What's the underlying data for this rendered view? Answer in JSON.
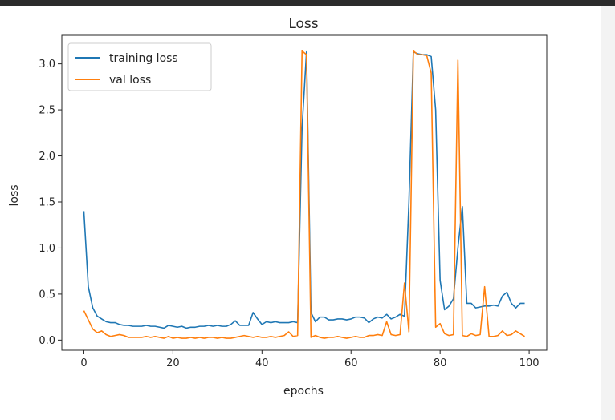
{
  "chart_data": {
    "type": "line",
    "title": "Loss",
    "xlabel": "epochs",
    "ylabel": "loss",
    "xlim": [
      -4.95,
      103.95
    ],
    "ylim": [
      -0.11,
      3.31
    ],
    "xticks": [
      "0",
      "20",
      "40",
      "60",
      "80",
      "100"
    ],
    "yticks": [
      "0.0",
      "0.5",
      "1.0",
      "1.5",
      "2.0",
      "2.5",
      "3.0"
    ],
    "grid": false,
    "legend_position": "top-left",
    "series": [
      {
        "name": "training loss",
        "color": "#1f77b4",
        "values": [
          1.4,
          0.58,
          0.35,
          0.26,
          0.23,
          0.2,
          0.19,
          0.19,
          0.17,
          0.16,
          0.16,
          0.15,
          0.15,
          0.15,
          0.16,
          0.15,
          0.15,
          0.14,
          0.13,
          0.16,
          0.15,
          0.14,
          0.15,
          0.13,
          0.14,
          0.14,
          0.15,
          0.15,
          0.16,
          0.15,
          0.16,
          0.15,
          0.15,
          0.17,
          0.21,
          0.16,
          0.16,
          0.16,
          0.3,
          0.23,
          0.17,
          0.2,
          0.19,
          0.2,
          0.19,
          0.19,
          0.19,
          0.2,
          0.19,
          2.3,
          3.13,
          0.3,
          0.2,
          0.25,
          0.25,
          0.22,
          0.22,
          0.23,
          0.23,
          0.22,
          0.23,
          0.25,
          0.25,
          0.24,
          0.19,
          0.23,
          0.25,
          0.24,
          0.28,
          0.23,
          0.25,
          0.28,
          0.26,
          1.5,
          3.13,
          3.11,
          3.1,
          3.1,
          3.08,
          2.5,
          0.65,
          0.33,
          0.37,
          0.45,
          1.0,
          1.45,
          0.4,
          0.4,
          0.35,
          0.36,
          0.37,
          0.37,
          0.38,
          0.37,
          0.48,
          0.52,
          0.4,
          0.35,
          0.4,
          0.4
        ]
      },
      {
        "name": "val loss",
        "color": "#ff7f0e",
        "values": [
          0.32,
          0.22,
          0.12,
          0.08,
          0.1,
          0.06,
          0.04,
          0.05,
          0.06,
          0.05,
          0.03,
          0.03,
          0.03,
          0.03,
          0.04,
          0.03,
          0.04,
          0.03,
          0.02,
          0.04,
          0.02,
          0.03,
          0.02,
          0.02,
          0.03,
          0.02,
          0.03,
          0.02,
          0.03,
          0.03,
          0.02,
          0.03,
          0.02,
          0.02,
          0.03,
          0.04,
          0.05,
          0.04,
          0.03,
          0.04,
          0.03,
          0.03,
          0.04,
          0.03,
          0.04,
          0.05,
          0.09,
          0.04,
          0.05,
          3.14,
          3.1,
          0.03,
          0.05,
          0.03,
          0.02,
          0.03,
          0.03,
          0.04,
          0.03,
          0.02,
          0.03,
          0.04,
          0.03,
          0.03,
          0.05,
          0.05,
          0.06,
          0.05,
          0.2,
          0.06,
          0.05,
          0.06,
          0.62,
          0.09,
          3.14,
          3.1,
          3.1,
          3.09,
          2.9,
          0.14,
          0.18,
          0.07,
          0.05,
          0.06,
          3.04,
          0.05,
          0.04,
          0.07,
          0.05,
          0.06,
          0.58,
          0.04,
          0.04,
          0.05,
          0.1,
          0.05,
          0.06,
          0.1,
          0.07,
          0.04
        ]
      }
    ]
  }
}
